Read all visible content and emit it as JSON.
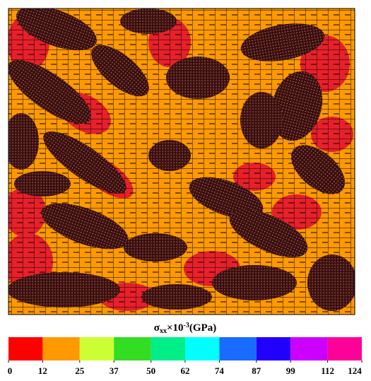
{
  "chart_data": {
    "type": "contour",
    "title": {
      "symbol": "σ",
      "subscript": "xx",
      "scale": "×10",
      "exponent": "-3",
      "unit": "(GPa)"
    },
    "bins": [
      0,
      12,
      25,
      37,
      50,
      62,
      74,
      87,
      99,
      112,
      124
    ],
    "colors": [
      "#ff0000",
      "#ff9900",
      "#ccff33",
      "#33dd22",
      "#00ee88",
      "#00ffff",
      "#1a6bff",
      "#2200ff",
      "#cc00ff",
      "#ff0099"
    ]
  }
}
